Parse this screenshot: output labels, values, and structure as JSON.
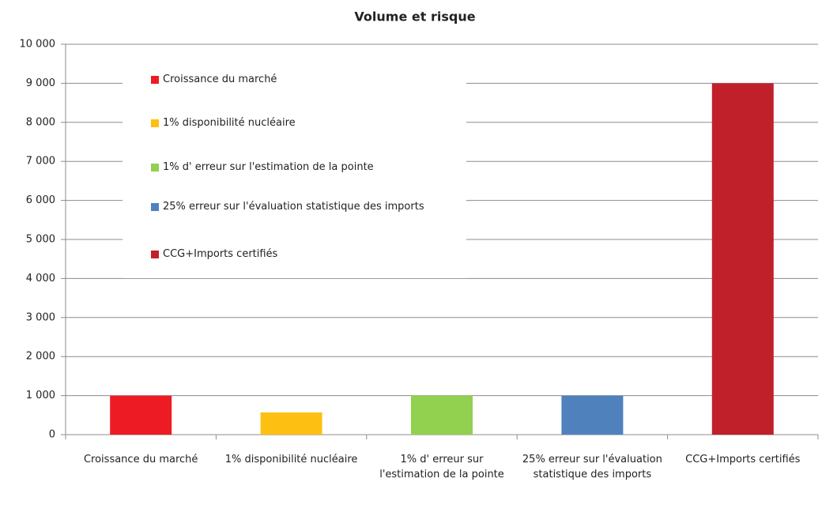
{
  "chart_data": {
    "type": "bar",
    "title": "Volume et risque",
    "categories": [
      "Croissance du marché",
      "1% disponibilité nucléaire",
      "1% d' erreur sur l'estimation de la pointe",
      "25% erreur sur l'évaluation statistique des imports",
      "CCG+Imports certifiés"
    ],
    "values": [
      1000,
      570,
      1000,
      1000,
      9000
    ],
    "colors": [
      "#ed1c24",
      "#fdbf12",
      "#92d050",
      "#4f81bd",
      "#c0202a"
    ],
    "ylim": [
      0,
      10000
    ],
    "yticks": [
      0,
      {
        "value": 1000,
        "label": "1 000"
      },
      {
        "value": 2000,
        "label": "2 000"
      },
      {
        "value": 3000,
        "label": "3 000"
      },
      {
        "value": 4000,
        "label": "4 000"
      },
      {
        "value": 5000,
        "label": "5 000"
      },
      {
        "value": 6000,
        "label": "6 000"
      },
      {
        "value": 7000,
        "label": "7 000"
      },
      {
        "value": 8000,
        "label": "8 000"
      },
      {
        "value": 9000,
        "label": "9 000"
      },
      {
        "value": 10000,
        "label": "10 000"
      }
    ],
    "grid": true,
    "legend": "upper left"
  }
}
